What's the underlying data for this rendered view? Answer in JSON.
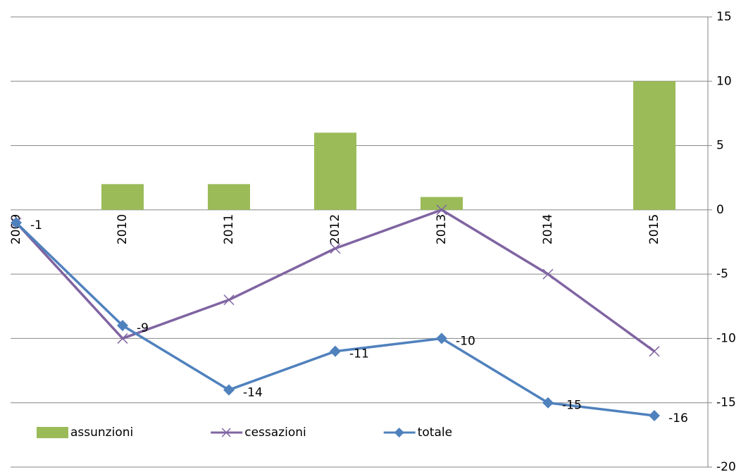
{
  "chart_data": {
    "type": "bar-line",
    "categories": [
      "2009",
      "2010",
      "2011",
      "2012",
      "2013",
      "2014",
      "2015"
    ],
    "series": [
      {
        "name": "assunzioni",
        "type": "bar",
        "color": "#9bbb59",
        "values": [
          0,
          2,
          2,
          6,
          1,
          0,
          10
        ]
      },
      {
        "name": "cessazioni",
        "type": "line",
        "marker": "x",
        "color": "#8064a2",
        "values": [
          -1,
          -10,
          -7,
          -3,
          0,
          -5,
          -11
        ]
      },
      {
        "name": "totale",
        "type": "line",
        "marker": "diamond",
        "color": "#4f81bd",
        "values": [
          -1,
          -9,
          -14,
          -11,
          -10,
          -15,
          -16
        ],
        "show_labels": true
      }
    ],
    "ylim": [
      -20,
      15
    ],
    "yticks": [
      -20,
      -15,
      -10,
      -5,
      0,
      5,
      10,
      15
    ],
    "y_axis_side": "right",
    "grid": true,
    "legend": "bottom-left"
  }
}
